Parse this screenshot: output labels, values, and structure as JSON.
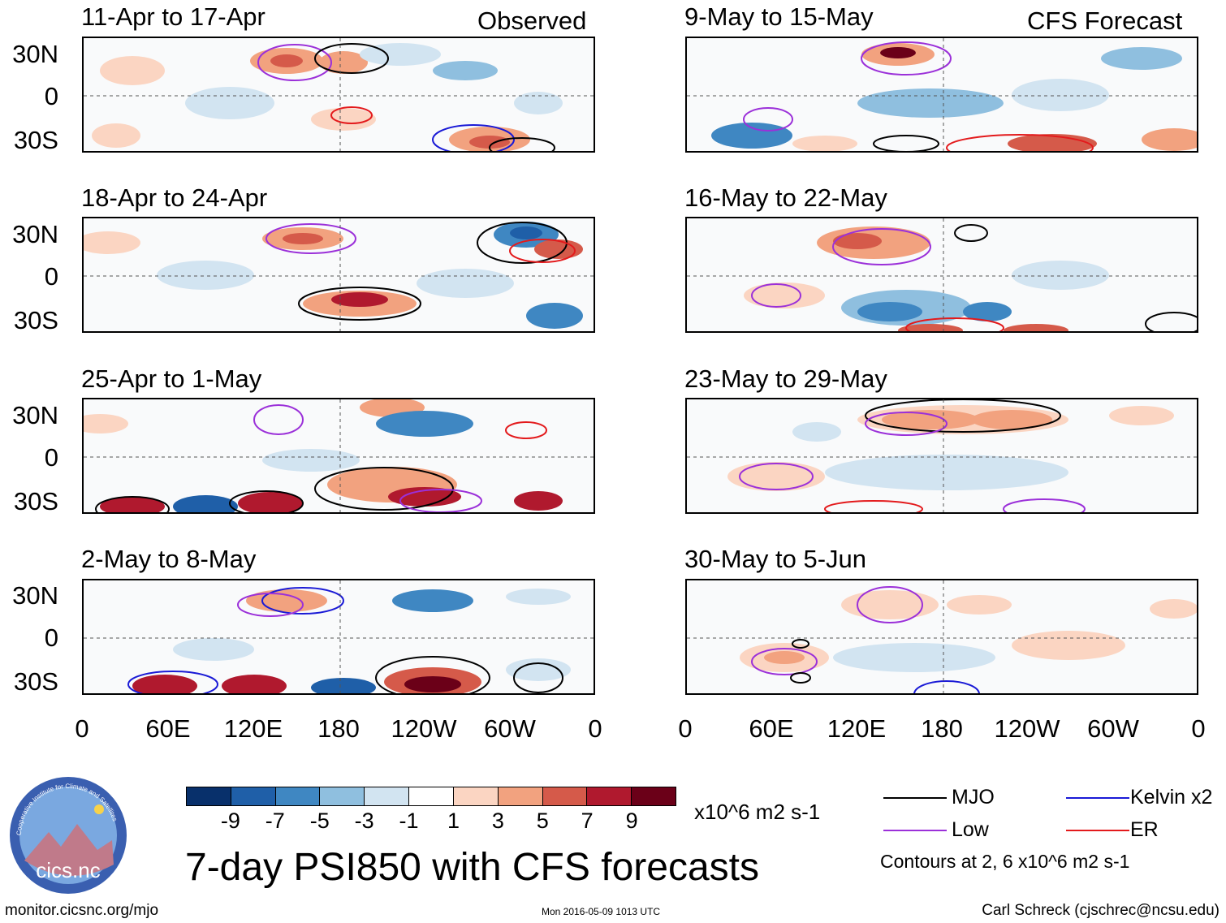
{
  "column_labels": {
    "observed": "Observed",
    "forecast": "CFS Forecast"
  },
  "panels": {
    "left": [
      {
        "period": "11-Apr to 17-Apr"
      },
      {
        "period": "18-Apr to 24-Apr"
      },
      {
        "period": "25-Apr to 1-May"
      },
      {
        "period": "2-May to 8-May"
      }
    ],
    "right": [
      {
        "period": "9-May to 15-May"
      },
      {
        "period": "16-May to 22-May"
      },
      {
        "period": "23-May to 29-May"
      },
      {
        "period": "30-May to 5-Jun"
      }
    ]
  },
  "lat_labels": [
    "30N",
    "0",
    "30S"
  ],
  "lon_labels": [
    "0",
    "60E",
    "120E",
    "180",
    "120W",
    "60W",
    "0"
  ],
  "colorbar": {
    "colors": [
      "#08306b",
      "#1f5fa8",
      "#3f87c2",
      "#8fbfdf",
      "#d2e4f1",
      "#ffffff",
      "#fbd5c2",
      "#f2a27f",
      "#d55a4a",
      "#b0192e",
      "#6b0018"
    ],
    "ticks": [
      "-9",
      "-7",
      "-5",
      "-3",
      "-1",
      "1",
      "3",
      "5",
      "7",
      "9"
    ],
    "units": "x10^6 m2 s-1"
  },
  "legend": {
    "mjo": {
      "label": "MJO",
      "color": "#000000"
    },
    "kelvin": {
      "label": "Kelvin x2",
      "color": "#1a1ad6"
    },
    "low": {
      "label": "Low",
      "color": "#9b30d9"
    },
    "er": {
      "label": "ER",
      "color": "#e31a1c"
    },
    "note": "Contours at 2, 6 x10^6 m2 s-1"
  },
  "main_title": "7-day PSI850 with CFS forecasts",
  "logo": {
    "text": "cics.nc",
    "ring_text": "Cooperative Institute for Climate and Satellites"
  },
  "footer": {
    "left": "monitor.cicsnc.org/mjo",
    "center": "Mon 2016-05-09 1013 UTC",
    "right": "Carl Schreck (cjschrec@ncsu.edu)"
  }
}
